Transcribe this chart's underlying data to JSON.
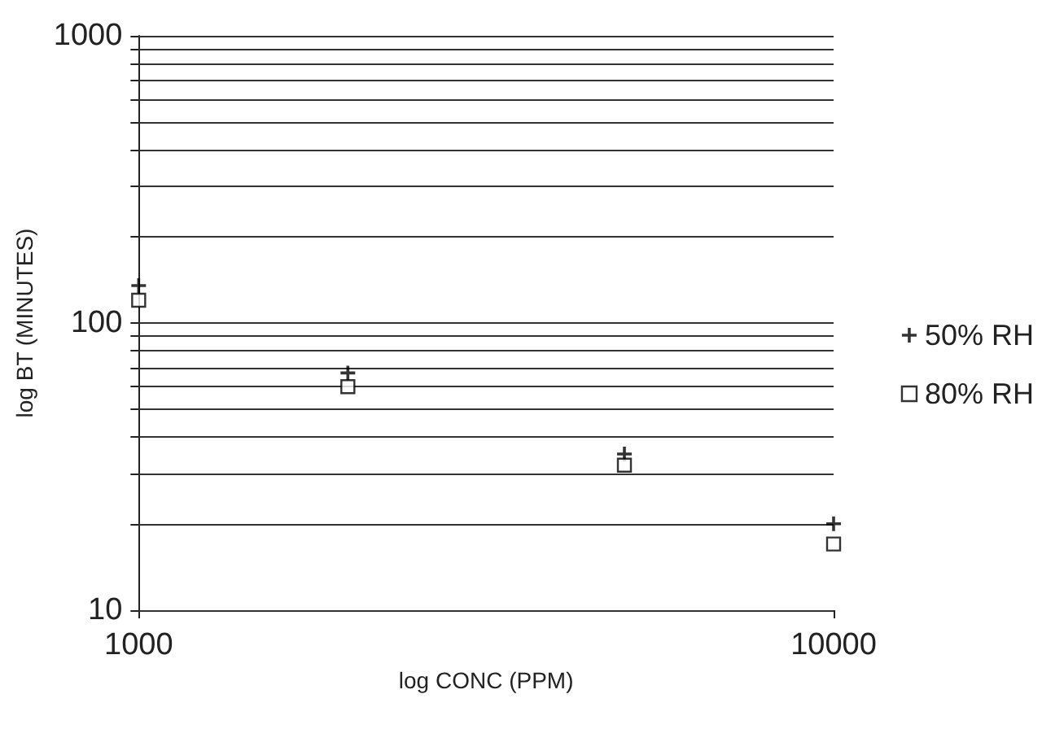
{
  "chart_data": {
    "type": "scatter",
    "xlabel": "log CONC (PPM)",
    "ylabel": "log BT (MINUTES)",
    "log": "xy",
    "xlim": [
      1000,
      10000
    ],
    "xticks": [
      1000,
      10000
    ],
    "ylim": [
      10,
      1000
    ],
    "yticks": [
      10,
      {
        "value": 20,
        "label": null
      },
      {
        "value": 30,
        "label": null
      },
      {
        "value": 40,
        "label": null
      },
      {
        "value": 50,
        "label": null
      },
      {
        "value": 60,
        "label": null
      },
      {
        "value": 70,
        "label": null
      },
      {
        "value": 80,
        "label": null
      },
      {
        "value": 90,
        "label": null
      },
      100,
      {
        "value": 200,
        "label": null
      },
      {
        "value": 300,
        "label": null
      },
      {
        "value": 400,
        "label": null
      },
      {
        "value": 500,
        "label": null
      },
      {
        "value": 600,
        "label": null
      },
      {
        "value": 700,
        "label": null
      },
      {
        "value": 800,
        "label": null
      },
      {
        "value": 900,
        "label": null
      },
      1000
    ],
    "grid": "y",
    "legend": "right",
    "x": [
      1000,
      2000,
      5000,
      10000
    ],
    "series": [
      {
        "name": "50% RH",
        "color": "#000000",
        "marker": "cross",
        "values": [
          135,
          67,
          35,
          20
        ]
      },
      {
        "name": "80% RH",
        "color": "#000000",
        "marker": "square",
        "values": [
          120,
          60,
          32,
          17
        ]
      }
    ]
  }
}
